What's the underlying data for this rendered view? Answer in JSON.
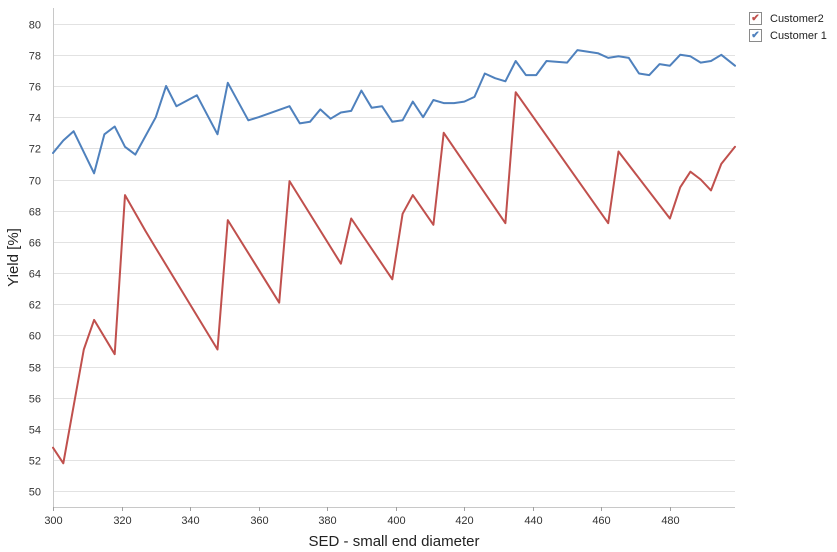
{
  "chart_data": {
    "type": "line",
    "xlabel": "SED - small end diameter",
    "ylabel": "Yield [%]",
    "xlim": [
      300,
      499
    ],
    "ylim": [
      49,
      81
    ],
    "xticks": [
      300,
      320,
      340,
      360,
      380,
      400,
      420,
      440,
      460,
      480
    ],
    "yticks": [
      50,
      52,
      54,
      56,
      58,
      60,
      62,
      64,
      66,
      68,
      70,
      72,
      74,
      76,
      78,
      80
    ],
    "grid": "horizontal",
    "legend_position": "top-right",
    "series": [
      {
        "name": "Customer2",
        "color": "#c0504d",
        "checked": true,
        "x": [
          300,
          303,
          309,
          312,
          318,
          321,
          327,
          330,
          348,
          351,
          366,
          369,
          384,
          387,
          399,
          402,
          405,
          411,
          414,
          432,
          435,
          462,
          465,
          480,
          483,
          486,
          489,
          492,
          495,
          499
        ],
        "y": [
          52.8,
          51.8,
          59.1,
          61.0,
          58.8,
          69.0,
          66.7,
          65.6,
          59.1,
          67.4,
          62.1,
          69.9,
          64.6,
          67.5,
          63.6,
          67.8,
          69.0,
          67.1,
          73.0,
          67.2,
          75.6,
          67.2,
          71.8,
          67.5,
          69.5,
          70.5,
          70.0,
          69.3,
          71.0,
          72.1
        ]
      },
      {
        "name": "Customer 1",
        "color": "#4f81bd",
        "checked": true,
        "x": [
          300,
          303,
          306,
          312,
          315,
          318,
          321,
          324,
          330,
          333,
          336,
          342,
          348,
          351,
          357,
          360,
          369,
          372,
          375,
          378,
          381,
          384,
          387,
          390,
          393,
          396,
          399,
          402,
          405,
          408,
          411,
          414,
          417,
          420,
          423,
          426,
          429,
          432,
          435,
          438,
          441,
          444,
          450,
          453,
          459,
          462,
          465,
          468,
          471,
          474,
          477,
          480,
          483,
          486,
          489,
          492,
          495,
          499
        ],
        "y": [
          71.7,
          72.5,
          73.1,
          70.4,
          72.9,
          73.4,
          72.1,
          71.6,
          74.0,
          76.0,
          74.7,
          75.4,
          72.9,
          76.2,
          73.8,
          74.0,
          74.7,
          73.6,
          73.7,
          74.5,
          73.9,
          74.3,
          74.4,
          75.7,
          74.6,
          74.7,
          73.7,
          73.8,
          75.0,
          74.0,
          75.1,
          74.9,
          74.9,
          75.0,
          75.3,
          76.8,
          76.5,
          76.3,
          77.6,
          76.7,
          76.7,
          77.6,
          77.5,
          78.3,
          78.1,
          77.8,
          77.9,
          77.8,
          76.8,
          76.7,
          77.4,
          77.3,
          78.0,
          77.9,
          77.5,
          77.6,
          78.0,
          77.3
        ]
      }
    ]
  }
}
